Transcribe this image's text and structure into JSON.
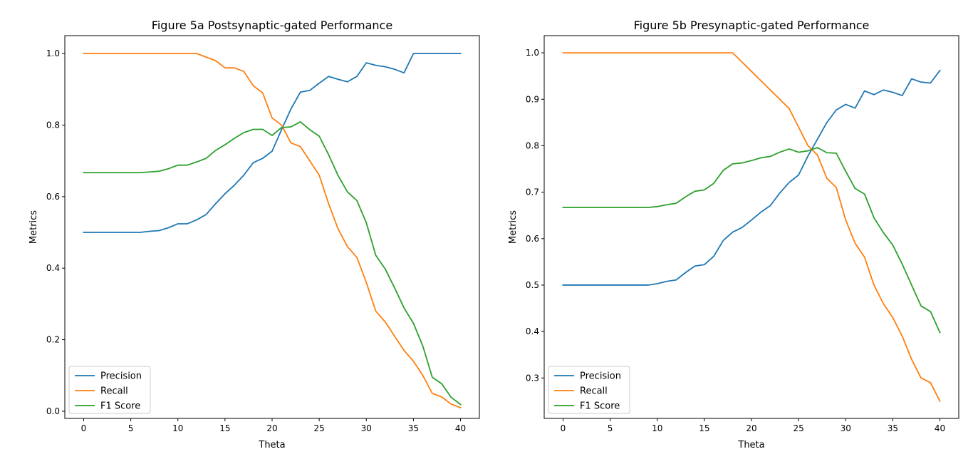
{
  "chart_data": [
    {
      "type": "line",
      "title": "Figure 5a Postsynaptic-gated Performance",
      "xlabel": "Theta",
      "ylabel": "Metrics",
      "xlim": [
        -2,
        42
      ],
      "ylim": [
        -0.02,
        1.05
      ],
      "xticks": [
        0,
        5,
        10,
        15,
        20,
        25,
        30,
        35,
        40
      ],
      "xtick_labels": [
        "0",
        "5",
        "10",
        "15",
        "20",
        "25",
        "30",
        "35",
        "40"
      ],
      "yticks": [
        0.0,
        0.2,
        0.4,
        0.6,
        0.8,
        1.0
      ],
      "ytick_labels": [
        "0.0",
        "0.2",
        "0.4",
        "0.6",
        "0.8",
        "1.0"
      ],
      "grid": false,
      "legend_position": "lower-left",
      "x": [
        0,
        1,
        2,
        3,
        4,
        5,
        6,
        7,
        8,
        9,
        10,
        11,
        12,
        13,
        14,
        15,
        16,
        17,
        18,
        19,
        20,
        21,
        22,
        23,
        24,
        25,
        26,
        27,
        28,
        29,
        30,
        31,
        32,
        33,
        34,
        35,
        36,
        37,
        38,
        39,
        40
      ],
      "series": [
        {
          "name": "Precision",
          "color": "#1f77b4",
          "values": [
            0.5,
            0.5,
            0.5,
            0.5,
            0.5,
            0.5,
            0.5,
            0.503,
            0.505,
            0.513,
            0.524,
            0.524,
            0.535,
            0.55,
            0.58,
            0.608,
            0.632,
            0.66,
            0.695,
            0.707,
            0.727,
            0.787,
            0.845,
            0.892,
            0.897,
            0.917,
            0.936,
            0.928,
            0.921,
            0.936,
            0.974,
            0.967,
            0.963,
            0.956,
            0.946,
            1.0,
            1.0,
            1.0,
            1.0,
            1.0,
            1.0
          ]
        },
        {
          "name": "Recall",
          "color": "#ff7f0e",
          "values": [
            1.0,
            1.0,
            1.0,
            1.0,
            1.0,
            1.0,
            1.0,
            1.0,
            1.0,
            1.0,
            1.0,
            1.0,
            1.0,
            0.99,
            0.98,
            0.96,
            0.96,
            0.95,
            0.91,
            0.89,
            0.82,
            0.8,
            0.75,
            0.74,
            0.7,
            0.66,
            0.58,
            0.51,
            0.46,
            0.43,
            0.36,
            0.28,
            0.25,
            0.21,
            0.17,
            0.14,
            0.1,
            0.05,
            0.04,
            0.02,
            0.01
          ]
        },
        {
          "name": "F1 Score",
          "color": "#2ca02c",
          "values": [
            0.667,
            0.667,
            0.667,
            0.667,
            0.667,
            0.667,
            0.667,
            0.669,
            0.671,
            0.678,
            0.688,
            0.688,
            0.697,
            0.707,
            0.729,
            0.745,
            0.763,
            0.779,
            0.788,
            0.788,
            0.771,
            0.793,
            0.795,
            0.809,
            0.787,
            0.769,
            0.717,
            0.659,
            0.613,
            0.589,
            0.527,
            0.436,
            0.398,
            0.345,
            0.289,
            0.246,
            0.182,
            0.095,
            0.077,
            0.039,
            0.019
          ]
        }
      ]
    },
    {
      "type": "line",
      "title": "Figure 5b Presynaptic-gated Performance",
      "xlabel": "Theta",
      "ylabel": "Metrics",
      "xlim": [
        -2,
        42
      ],
      "ylim": [
        0.213,
        1.037
      ],
      "xticks": [
        0,
        5,
        10,
        15,
        20,
        25,
        30,
        35,
        40
      ],
      "xtick_labels": [
        "0",
        "5",
        "10",
        "15",
        "20",
        "25",
        "30",
        "35",
        "40"
      ],
      "yticks": [
        0.3,
        0.4,
        0.5,
        0.6,
        0.7,
        0.8,
        0.9,
        1.0
      ],
      "ytick_labels": [
        "0.3",
        "0.4",
        "0.5",
        "0.6",
        "0.7",
        "0.8",
        "0.9",
        "1.0"
      ],
      "grid": false,
      "legend_position": "lower-left",
      "x": [
        0,
        1,
        2,
        3,
        4,
        5,
        6,
        7,
        8,
        9,
        10,
        11,
        12,
        13,
        14,
        15,
        16,
        17,
        18,
        19,
        20,
        21,
        22,
        23,
        24,
        25,
        26,
        27,
        28,
        29,
        30,
        31,
        32,
        33,
        34,
        35,
        36,
        37,
        38,
        39,
        40
      ],
      "series": [
        {
          "name": "Precision",
          "color": "#1f77b4",
          "values": [
            0.5,
            0.5,
            0.5,
            0.5,
            0.5,
            0.5,
            0.5,
            0.5,
            0.5,
            0.5,
            0.503,
            0.508,
            0.511,
            0.527,
            0.541,
            0.544,
            0.562,
            0.596,
            0.614,
            0.624,
            0.64,
            0.657,
            0.671,
            0.698,
            0.721,
            0.737,
            0.778,
            0.814,
            0.85,
            0.877,
            0.889,
            0.881,
            0.918,
            0.91,
            0.92,
            0.915,
            0.908,
            0.944,
            0.937,
            0.935,
            0.962
          ]
        },
        {
          "name": "Recall",
          "color": "#ff7f0e",
          "values": [
            1.0,
            1.0,
            1.0,
            1.0,
            1.0,
            1.0,
            1.0,
            1.0,
            1.0,
            1.0,
            1.0,
            1.0,
            1.0,
            1.0,
            1.0,
            1.0,
            1.0,
            1.0,
            1.0,
            0.98,
            0.96,
            0.94,
            0.92,
            0.9,
            0.88,
            0.84,
            0.8,
            0.78,
            0.73,
            0.71,
            0.64,
            0.59,
            0.56,
            0.5,
            0.46,
            0.43,
            0.39,
            0.34,
            0.3,
            0.29,
            0.25
          ]
        },
        {
          "name": "F1 Score",
          "color": "#2ca02c",
          "values": [
            0.667,
            0.667,
            0.667,
            0.667,
            0.667,
            0.667,
            0.667,
            0.667,
            0.667,
            0.667,
            0.669,
            0.673,
            0.676,
            0.69,
            0.702,
            0.705,
            0.719,
            0.747,
            0.761,
            0.763,
            0.768,
            0.774,
            0.777,
            0.786,
            0.793,
            0.786,
            0.789,
            0.796,
            0.785,
            0.784,
            0.745,
            0.708,
            0.696,
            0.645,
            0.613,
            0.586,
            0.545,
            0.5,
            0.455,
            0.443,
            0.398
          ]
        }
      ]
    }
  ]
}
